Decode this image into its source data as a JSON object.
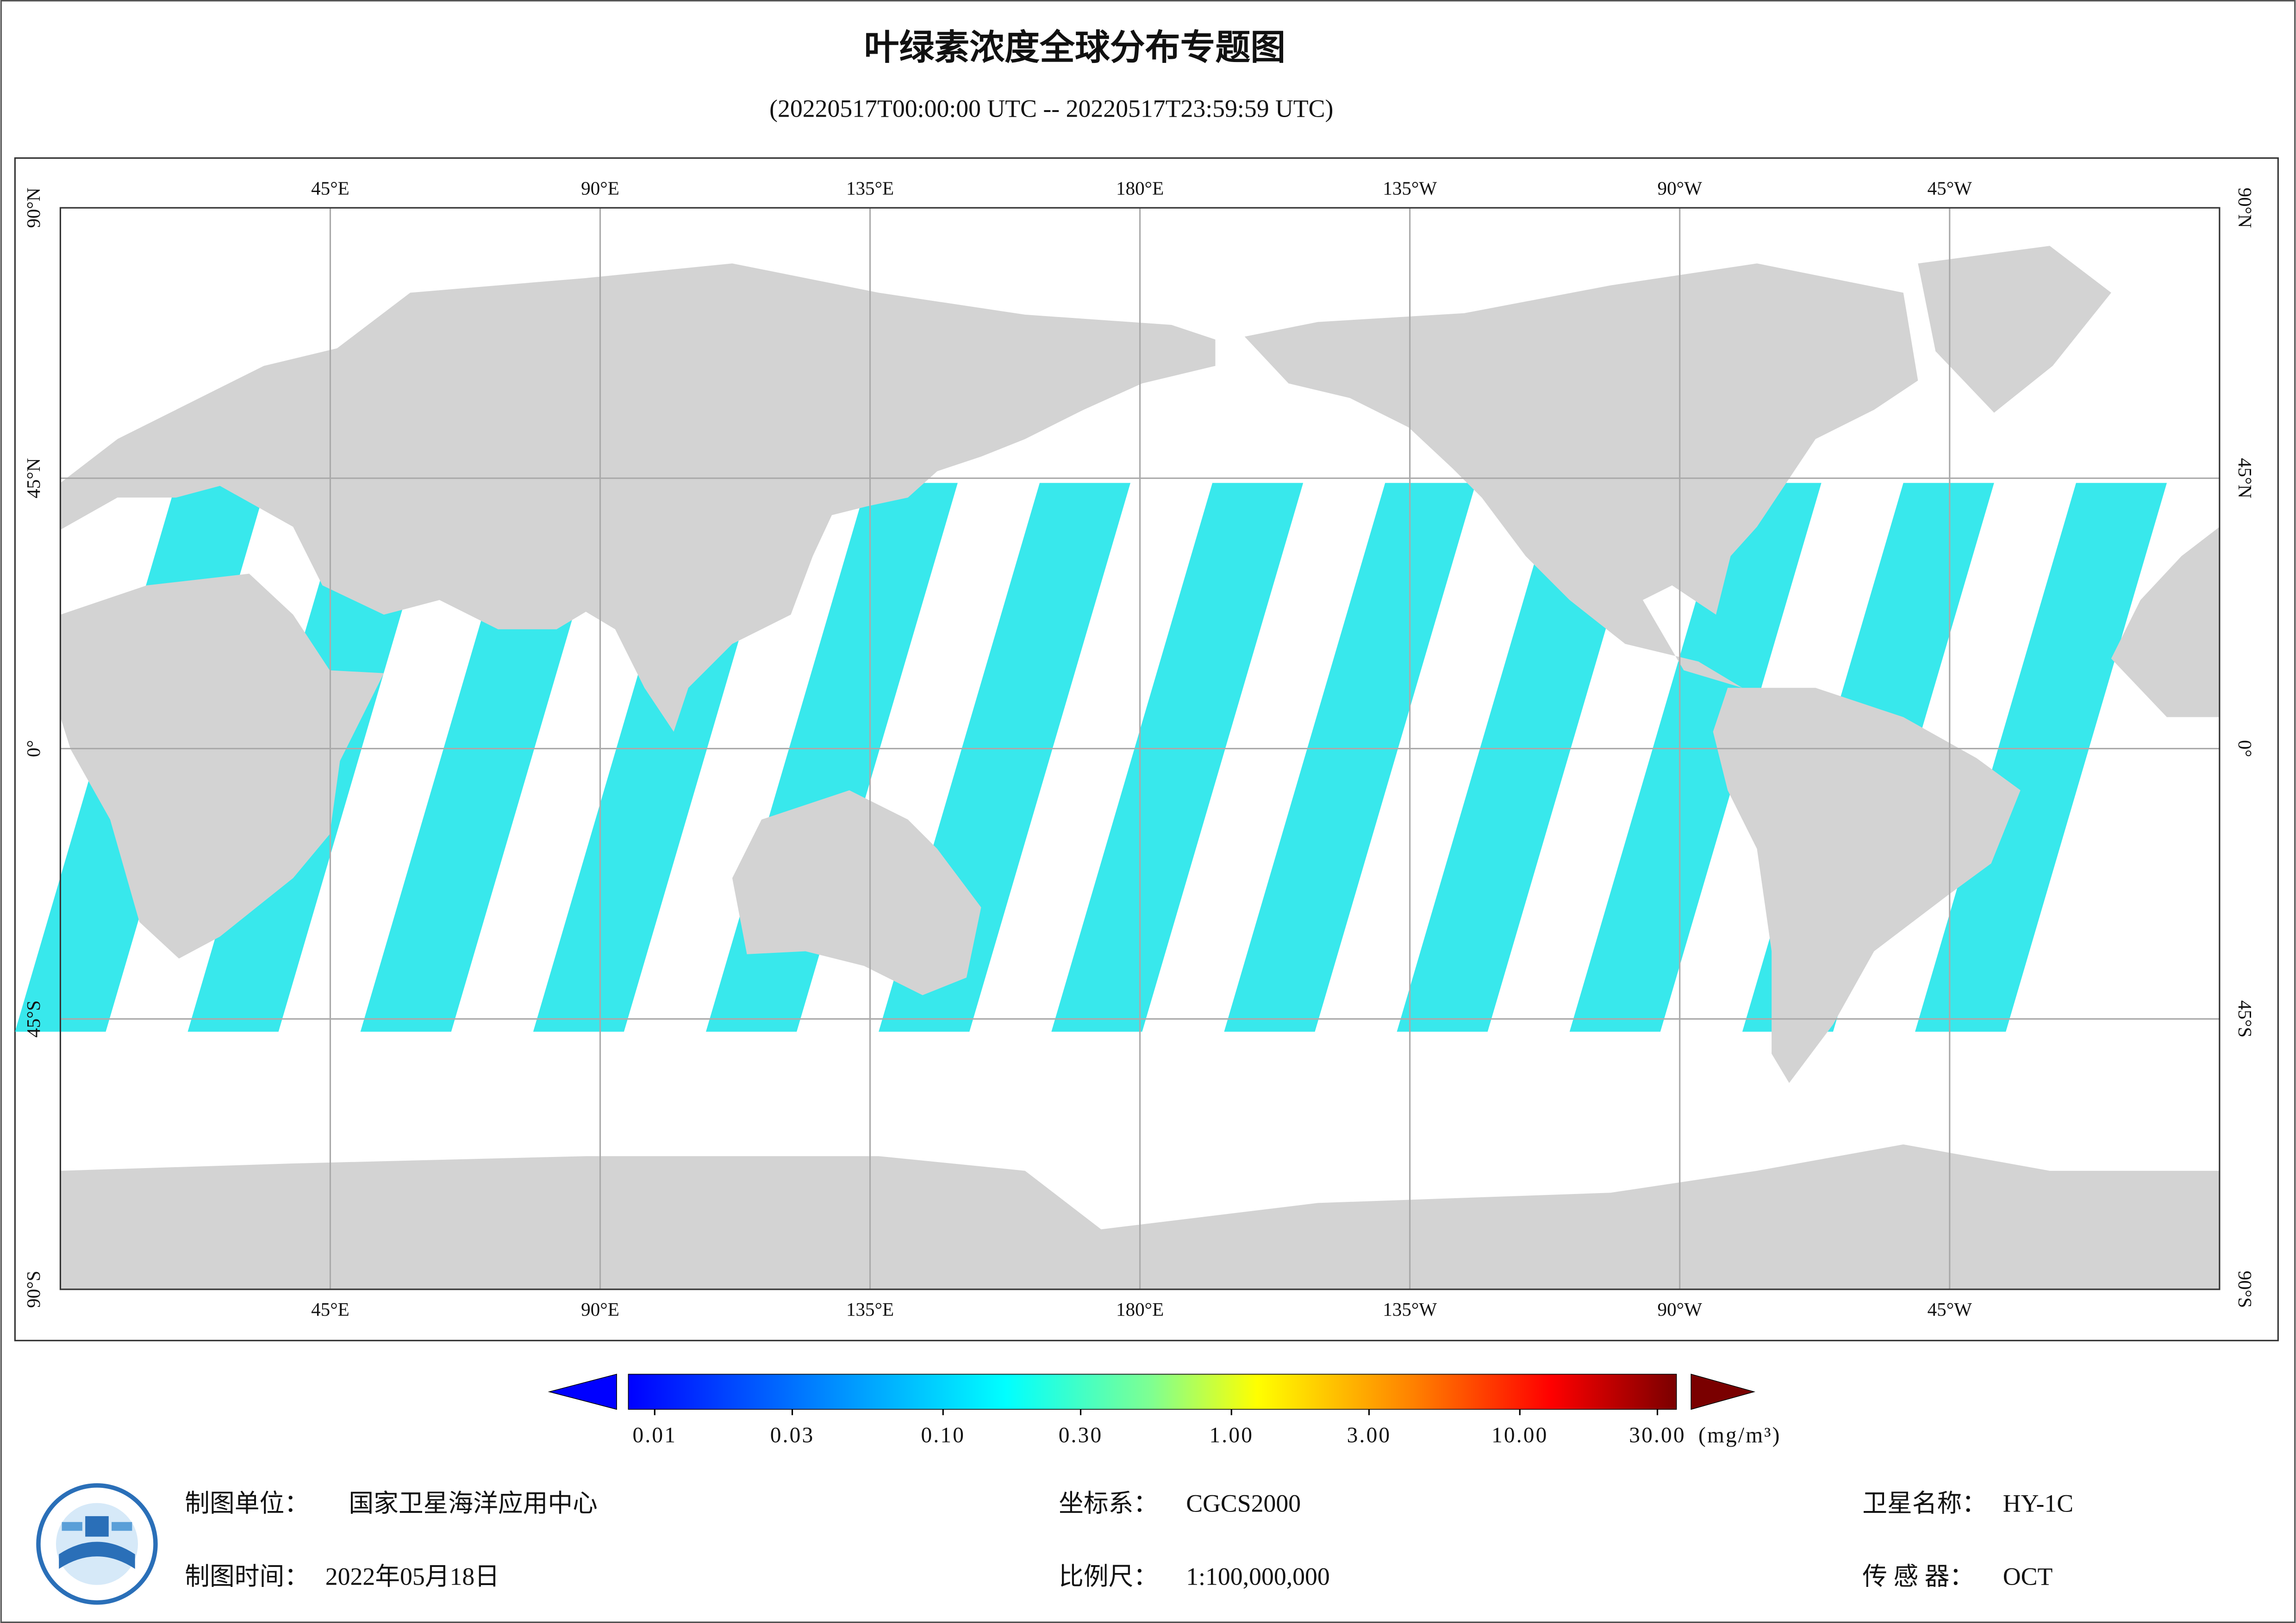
{
  "header": {
    "title": "叶绿素浓度全球分布专题图",
    "subtitle": "(20220517T00:00:00 UTC -- 20220517T23:59:59 UTC)"
  },
  "map": {
    "lon_labels": [
      "45°E",
      "90°E",
      "135°E",
      "180°E",
      "135°W",
      "90°W",
      "45°W"
    ],
    "lat_labels": [
      "90°N",
      "45°N",
      "0°",
      "45°S",
      "90°S"
    ]
  },
  "colorbar": {
    "ticks": [
      0.01,
      0.03,
      {
        "value": 0.1,
        "label": "0.10"
      },
      {
        "value": 0.3,
        "label": "0.30"
      },
      {
        "value": 1,
        "label": "1.00"
      },
      {
        "value": 3,
        "label": "3.00"
      },
      {
        "value": 10,
        "label": "10.00"
      },
      {
        "value": 30,
        "label": "30.00"
      }
    ],
    "unit": "(mg/m³)"
  },
  "footer": [
    {
      "label": "制图单位：",
      "value": "国家卫星海洋应用中心"
    },
    {
      "label": "坐标系：",
      "value": "CGCS2000"
    },
    {
      "label": "卫星名称：",
      "value": "HY-1C"
    },
    {
      "label": "制图时间：",
      "value": "2022年05月18日"
    },
    {
      "label": "比例尺：",
      "value": "1:100,000,000"
    },
    {
      "label": "传 感 器：",
      "value": "OCT"
    }
  ]
}
